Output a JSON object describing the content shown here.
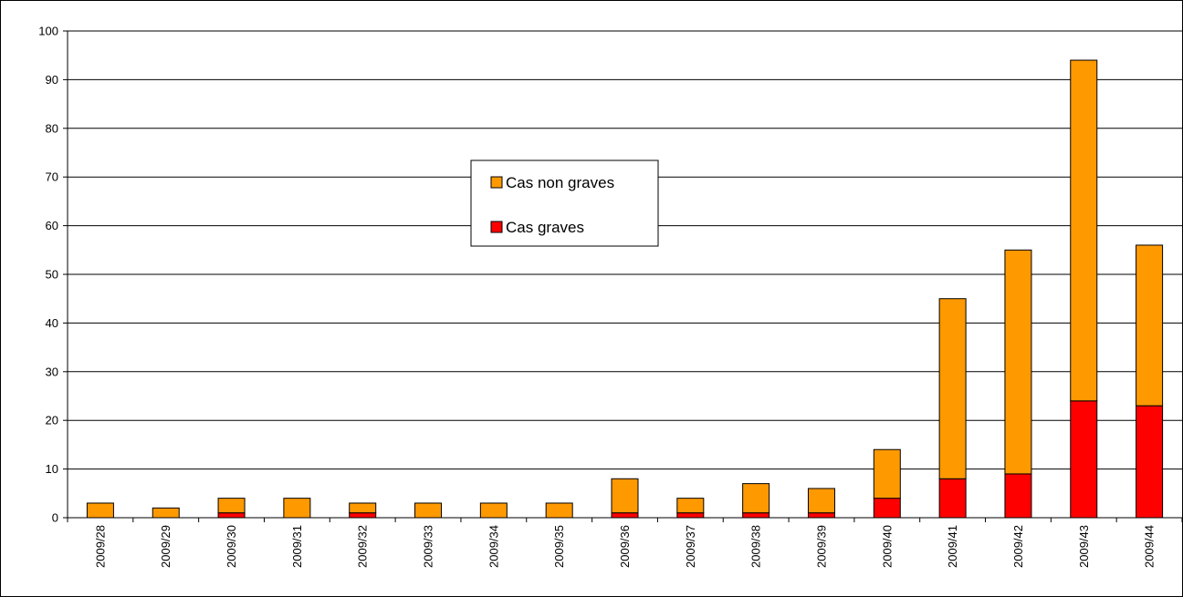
{
  "chart_data": {
    "type": "bar",
    "stacked": true,
    "title": "",
    "xlabel": "",
    "ylabel": "",
    "ylim": [
      0,
      100
    ],
    "yticks": [
      0,
      10,
      20,
      30,
      40,
      50,
      60,
      70,
      80,
      90,
      100
    ],
    "grid": true,
    "legend_position": "center-top",
    "categories": [
      "2009/28",
      "2009/29",
      "2009/30",
      "2009/31",
      "2009/32",
      "2009/33",
      "2009/34",
      "2009/35",
      "2009/36",
      "2009/37",
      "2009/38",
      "2009/39",
      "2009/40",
      "2009/41",
      "2009/42",
      "2009/43",
      "2009/44"
    ],
    "series": [
      {
        "name": "Cas graves",
        "color": "#ff0000",
        "values": [
          0,
          0,
          1,
          0,
          1,
          0,
          0,
          0,
          1,
          1,
          1,
          1,
          4,
          8,
          9,
          24,
          23
        ]
      },
      {
        "name": "Cas non graves",
        "color": "#ff9900",
        "values": [
          3,
          2,
          3,
          4,
          2,
          3,
          3,
          3,
          7,
          3,
          6,
          5,
          10,
          37,
          46,
          70,
          33
        ]
      }
    ],
    "legend": [
      {
        "label": "Cas non graves",
        "color": "#ff9900"
      },
      {
        "label": "Cas graves",
        "color": "#ff0000"
      }
    ]
  }
}
